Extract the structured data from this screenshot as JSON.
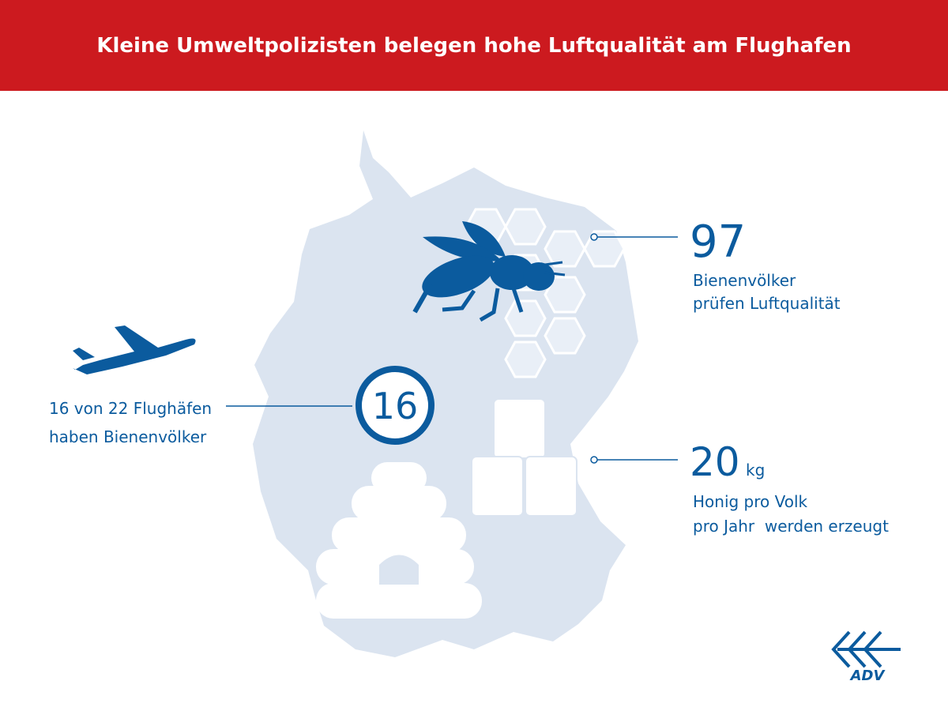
{
  "header": {
    "title": "Kleine Umweltpolizisten belegen hohe Luftqualität am Flughafen"
  },
  "stats": [
    {
      "number": 97,
      "lines": [
        "Bienenvölker",
        "prüfen Luftqualität"
      ]
    },
    {
      "number": 16,
      "lines": [
        "16 von 22 Flughäfen",
        "haben Bienenvölker"
      ]
    },
    {
      "number": 20,
      "unit": "kg",
      "lines": [
        "Honig pro Volk",
        "pro Jahr  werden erzeugt"
      ]
    }
  ],
  "logo": {
    "text": "ADV"
  }
}
